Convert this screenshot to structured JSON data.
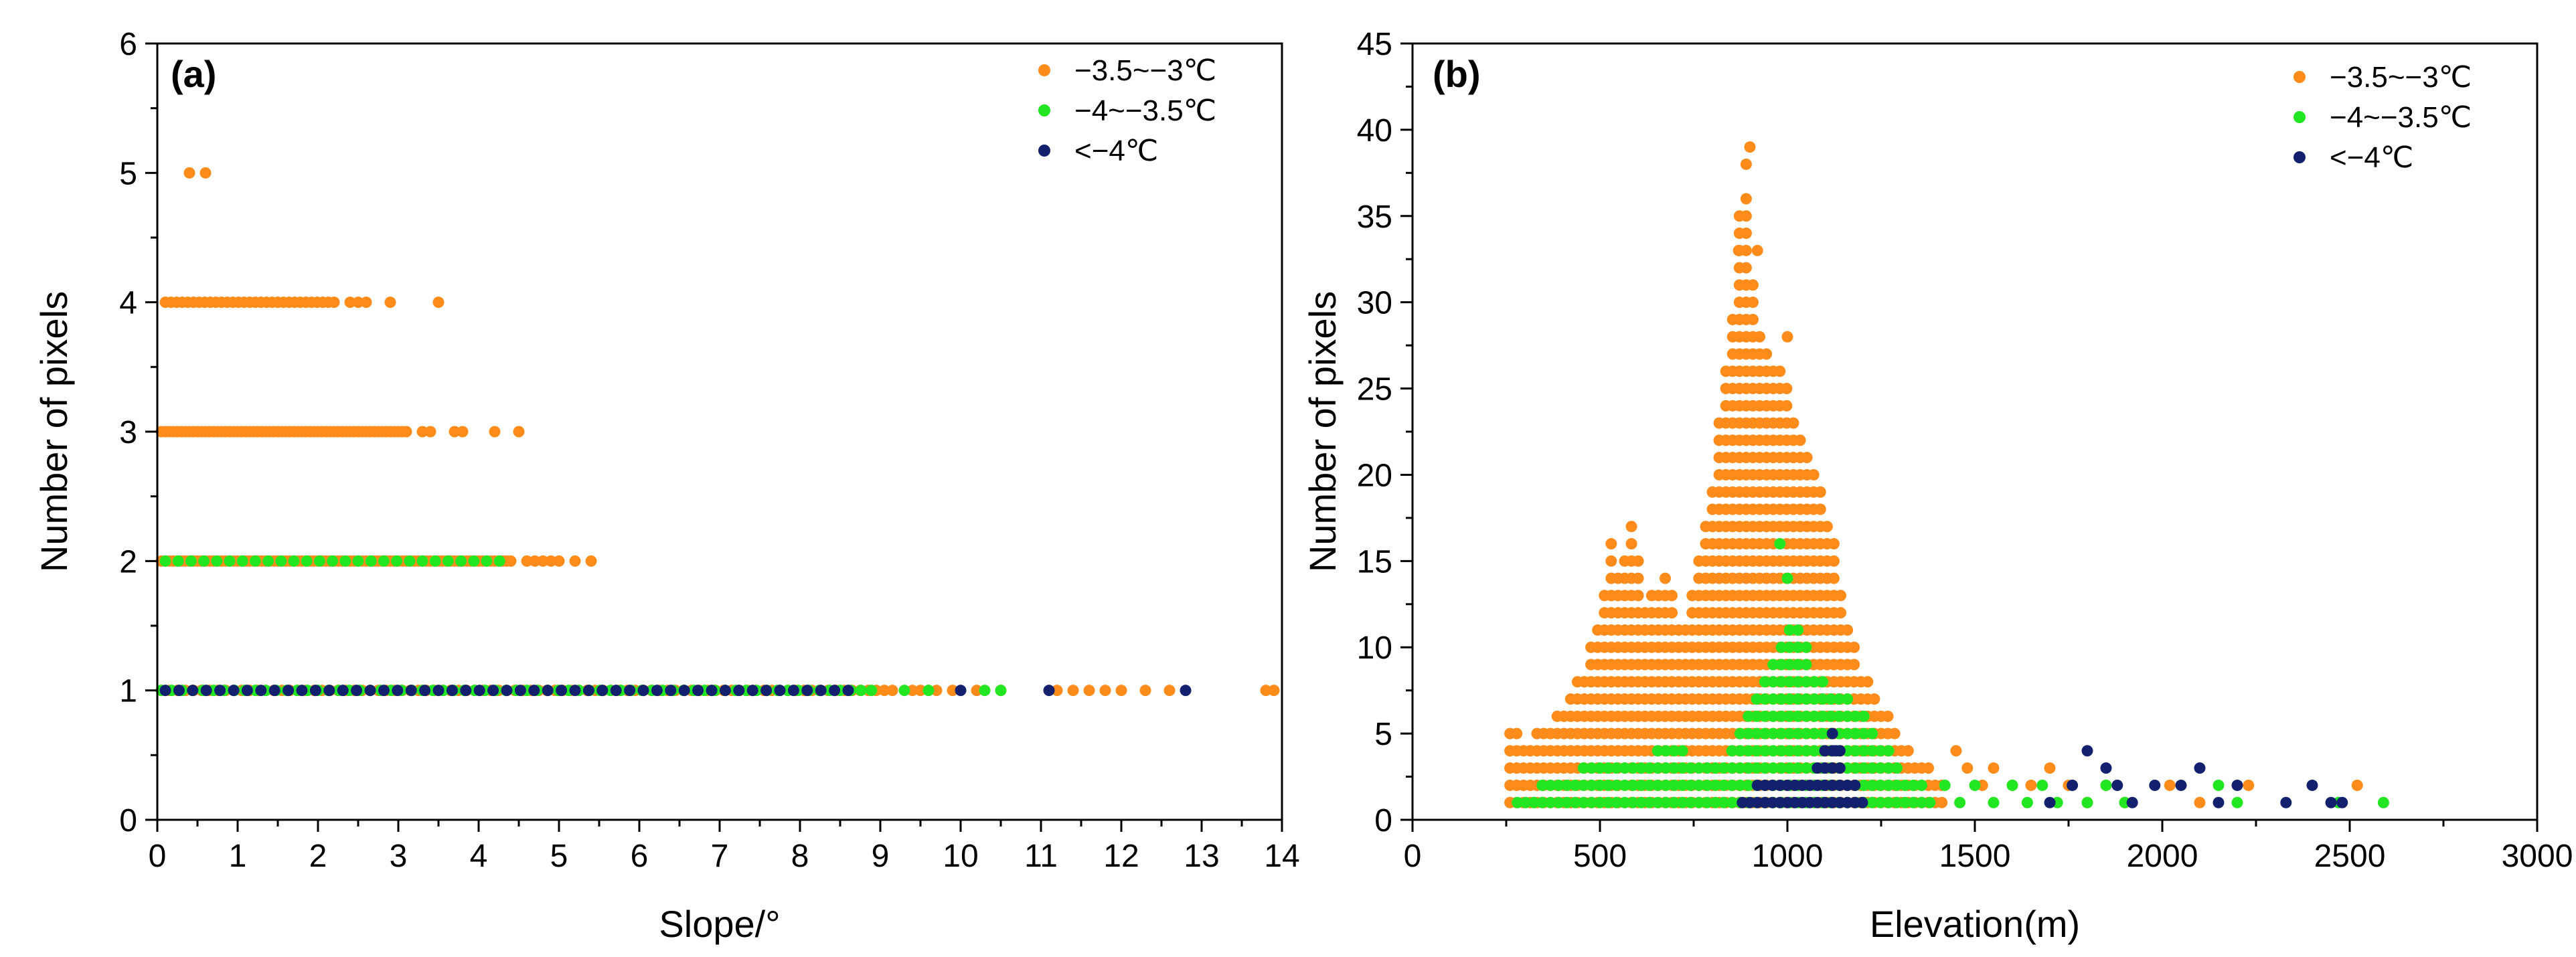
{
  "chart_data": [
    {
      "type": "scatter",
      "panel_label": "(a)",
      "xlabel": "Slope/°",
      "ylabel": "Number of pixels",
      "xlim": [
        0,
        14
      ],
      "ylim": [
        0,
        6
      ],
      "xticks": [
        0,
        1,
        2,
        3,
        4,
        5,
        6,
        7,
        8,
        9,
        10,
        11,
        12,
        13,
        14
      ],
      "yticks": [
        0,
        1,
        2,
        3,
        4,
        5,
        6
      ],
      "grid": false,
      "legend_position": "top-right",
      "series": [
        {
          "name": "−3.5~−3℃",
          "color": "#ff8c1a",
          "segments": [
            {
              "y": 5,
              "x_start": 0.4,
              "x_end": 0.6,
              "step": 0.2
            },
            {
              "y": 4,
              "x_start": 0.1,
              "x_end": 2.2,
              "step": 0.07
            },
            {
              "y": 4,
              "x_points": [
                2.4,
                2.5,
                2.6,
                2.9,
                3.5
              ]
            },
            {
              "y": 3,
              "x_start": 0.05,
              "x_end": 3.1,
              "step": 0.05
            },
            {
              "y": 3,
              "x_points": [
                3.3,
                3.4,
                3.7,
                3.8,
                4.2,
                4.5
              ]
            },
            {
              "y": 2,
              "x_start": 0.05,
              "x_end": 4.4,
              "step": 0.05
            },
            {
              "y": 2,
              "x_points": [
                4.6,
                4.7,
                4.8,
                4.9,
                5.0,
                5.2,
                5.4
              ]
            },
            {
              "y": 1,
              "x_start": 0.05,
              "x_end": 9.2,
              "step": 0.1
            },
            {
              "y": 1,
              "x_points": [
                9.4,
                9.5,
                9.6,
                9.7,
                9.9,
                10.2,
                10.5,
                11.2,
                11.4,
                11.6,
                11.8,
                12.0,
                12.3,
                12.6,
                13.8,
                13.9
              ]
            }
          ]
        },
        {
          "name": "−4~−3.5℃",
          "color": "#22e622",
          "segments": [
            {
              "y": 2,
              "x_start": 0.1,
              "x_end": 4.4,
              "step": 0.16
            },
            {
              "y": 1,
              "x_start": 0.05,
              "x_end": 9.0,
              "step": 0.13
            },
            {
              "y": 1,
              "x_points": [
                9.3,
                9.6,
                10.3,
                10.5
              ]
            }
          ]
        },
        {
          "name": "<−4℃",
          "color": "#12206e",
          "segments": [
            {
              "y": 1,
              "x_start": 0.1,
              "x_end": 8.7,
              "step": 0.17
            },
            {
              "y": 1,
              "x_points": [
                10.0,
                11.1,
                12.8
              ]
            }
          ]
        }
      ]
    },
    {
      "type": "scatter",
      "panel_label": "(b)",
      "xlabel": "Elevation(m)",
      "ylabel": "Number of pixels",
      "xlim": [
        0,
        3000
      ],
      "ylim": [
        0,
        45
      ],
      "xticks": [
        0,
        500,
        1000,
        1500,
        2000,
        2500,
        3000
      ],
      "yticks": [
        0,
        5,
        10,
        15,
        20,
        25,
        30,
        35,
        40,
        45
      ],
      "grid": false,
      "legend_position": "top-right",
      "series": [
        {
          "name": "−3.5~−3℃",
          "color": "#ff8c1a",
          "columns": {
            "x_start": 260,
            "x_end": 1420,
            "step": 18,
            "max_profile_x": [
              260,
              300,
              350,
              400,
              450,
              500,
              530,
              560,
              580,
              620,
              680,
              720,
              760,
              800,
              840,
              860,
              880,
              900,
              920,
              960,
              1000,
              1040,
              1080,
              1120,
              1160,
              1200,
              1260,
              1300,
              1360,
              1420
            ],
            "max_profile_y": [
              5,
              4,
              5,
              6,
              8,
              11,
              16,
              13,
              18,
              12,
              14,
              10,
              14,
              19,
              27,
              30,
              38,
              33,
              28,
              26,
              25,
              21,
              20,
              16,
              11,
              8,
              6,
              4,
              3,
              2
            ]
          },
          "extra_points": [
            [
              1450,
              4
            ],
            [
              1480,
              3
            ],
            [
              1520,
              2
            ],
            [
              1550,
              3
            ],
            [
              1600,
              2
            ],
            [
              1650,
              2
            ],
            [
              1700,
              3
            ],
            [
              1750,
              2
            ],
            [
              1800,
              1
            ],
            [
              1850,
              2
            ],
            [
              1900,
              1
            ],
            [
              2020,
              2
            ],
            [
              2100,
              1
            ],
            [
              2230,
              2
            ],
            [
              2520,
              2
            ],
            [
              900,
              39
            ],
            [
              890,
              38
            ],
            [
              870,
              33
            ],
            [
              920,
              33
            ],
            [
              1000,
              28
            ]
          ]
        },
        {
          "name": "−4~−3.5℃",
          "color": "#22e622",
          "columns": {
            "x_start": 280,
            "x_end": 1400,
            "step": 22,
            "max_profile_x": [
              280,
              400,
              500,
              600,
              700,
              760,
              820,
              880,
              940,
              980,
              1020,
              1080,
              1140,
              1200,
              1260,
              1320,
              1400
            ],
            "max_profile_y": [
              1,
              2,
              3,
              3,
              4,
              3,
              3,
              5,
              8,
              10,
              11,
              8,
              7,
              6,
              4,
              2,
              1
            ]
          },
          "extra_points": [
            [
              980,
              16
            ],
            [
              1000,
              14
            ],
            [
              1420,
              2
            ],
            [
              1460,
              1
            ],
            [
              1500,
              2
            ],
            [
              1550,
              1
            ],
            [
              1600,
              2
            ],
            [
              1640,
              1
            ],
            [
              1680,
              2
            ],
            [
              1720,
              1
            ],
            [
              1760,
              2
            ],
            [
              1800,
              1
            ],
            [
              1850,
              2
            ],
            [
              1900,
              1
            ],
            [
              2150,
              2
            ],
            [
              2200,
              1
            ],
            [
              2470,
              1
            ],
            [
              2590,
              1
            ]
          ]
        },
        {
          "name": "<−4℃",
          "color": "#12206e",
          "columns": {
            "x_start": 880,
            "x_end": 1200,
            "step": 20,
            "max_profile_x": [
              880,
              940,
              1000,
              1060,
              1120,
              1160,
              1200
            ],
            "max_profile_y": [
              1,
              2,
              2,
              2,
              5,
              2,
              1
            ]
          },
          "extra_points": [
            [
              1700,
              1
            ],
            [
              1760,
              2
            ],
            [
              1800,
              4
            ],
            [
              1850,
              3
            ],
            [
              1880,
              2
            ],
            [
              1920,
              1
            ],
            [
              1980,
              2
            ],
            [
              2050,
              2
            ],
            [
              2100,
              3
            ],
            [
              2150,
              1
            ],
            [
              2200,
              2
            ],
            [
              2330,
              1
            ],
            [
              2400,
              2
            ],
            [
              2450,
              1
            ],
            [
              2480,
              1
            ],
            [
              1130,
              4
            ]
          ]
        }
      ]
    }
  ]
}
